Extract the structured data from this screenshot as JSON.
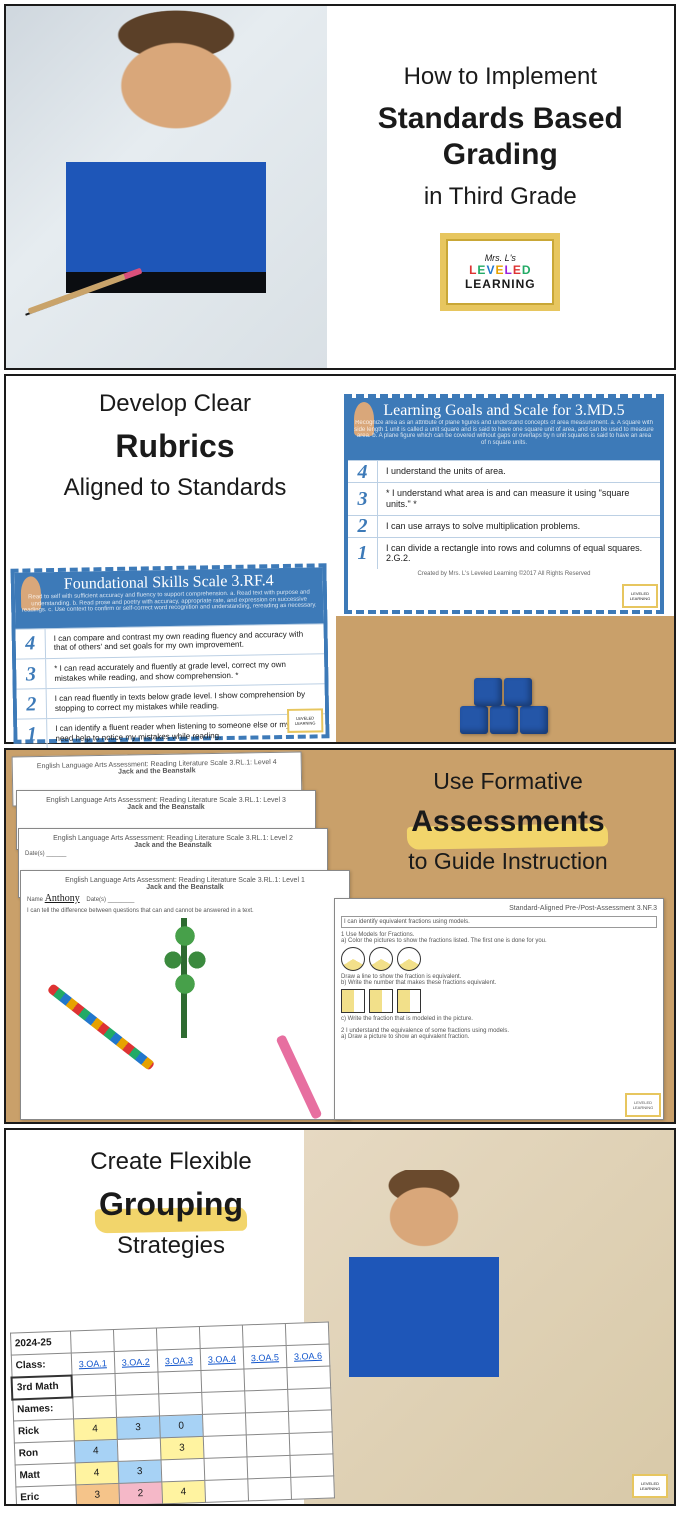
{
  "logo": {
    "line1": "Mrs. L's",
    "line2": "LEVELED",
    "line3": "LEARNING"
  },
  "panel1": {
    "line1": "How to Implement",
    "line2a": "Standards Based",
    "line2b": "Grading",
    "line3": "in Third Grade"
  },
  "panel2": {
    "line1": "Develop Clear",
    "highlight": "Rubrics",
    "line3": "Aligned to Standards",
    "left": {
      "title": "Foundational Skills Scale 3.RF.4",
      "sub": "Read to self with sufficient accuracy and fluency to support comprehension. a. Read text with purpose and understanding. b. Read prose and poetry with accuracy, appropriate rate, and expression on successive readings. c. Use context to confirm or self-correct word recognition and understanding, rereading as necessary.",
      "r4": "I can compare and contrast my own reading fluency and accuracy with that of others' and set goals for my own improvement.",
      "r3": "* I can read accurately and fluently at grade level, correct my own mistakes while reading, and show comprehension. *",
      "r2": "I can read fluently in texts below grade level. I show comprehension by stopping to correct my mistakes while reading.",
      "r1": "I can identify a fluent reader when listening to someone else or myself. I need help to notice my mistakes while reading."
    },
    "right": {
      "title": "Learning Goals and Scale for 3.MD.5",
      "sub": "Recognize area as an attribute of plane figures and understand concepts of area measurement. a. A square with side length 1 unit is called a unit square and is said to have one square unit of area, and can be used to measure area. b. A plane figure which can be covered without gaps or overlaps by n unit squares is said to have an area of n square units.",
      "r4": "I understand the units of area.",
      "r3": "* I understand what area is and can measure it using \"square units.\" *",
      "r2": "I can use arrays to solve multiplication problems.",
      "r1": "I can divide a rectangle into rows and columns of equal squares.   2.G.2.",
      "credit": "Created by Mrs. L's Leveled Learning ©2017 All Rights Reserved"
    }
  },
  "panel3": {
    "line1": "Use Formative",
    "highlight": "Assessments",
    "line3": "to Guide Instruction",
    "sheetA": "English Language Arts Assessment: Reading Literature Scale 3.RL.1: Level 4",
    "storyA": "Jack and the Beanstalk",
    "sheetB": "English Language Arts Assessment: Reading Literature Scale 3.RL.1: Level 3",
    "sheetC": "English Language Arts Assessment: Reading Literature Scale 3.RL.1: Level 2",
    "sheetD": "English Language Arts Assessment: Reading Literature Scale 3.RL.1: Level 1",
    "storyD": "Jack and the Beanstalk",
    "nameLbl": "Name",
    "nameVal": "Anthony",
    "dateLbl": "Date(s)",
    "goalD": "I can tell the difference between questions that can and cannot be answered in a text.",
    "wsTitle": "Standard-Aligned Pre-/Post-Assessment   3.NF.3",
    "wsGoal": "I can identify equivalent fractions using models.",
    "ws1": "1   Use Models for Fractions.\n   a) Color the pictures to show the fractions listed. The first one is done for you.",
    "ws1b": "Draw a line to show the fraction is equivalent.",
    "ws1c": "b) Write the number that makes these fractions equivalent.",
    "ws1d": "c) Write the fraction that is modeled in the picture.",
    "ws2": "2   I understand the equivalence of some fractions using models.\n   a) Draw a picture to show an equivalent fraction."
  },
  "panel4": {
    "line1": "Create Flexible",
    "highlight": "Grouping",
    "line3": "Strategies",
    "year": "2024-25",
    "classLbl": "Class:",
    "className": "3rd Math",
    "namesLbl": "Names:",
    "headers": [
      "3.OA.1",
      "3.OA.2",
      "3.OA.3",
      "3.OA.4",
      "3.OA.5",
      "3.OA.6"
    ],
    "students": [
      "Rick",
      "Ron",
      "Matt",
      "Eric"
    ],
    "grid": [
      [
        "4",
        "3",
        "0",
        "",
        "",
        ""
      ],
      [
        "4",
        "",
        "3",
        "",
        "",
        ""
      ],
      [
        "4",
        "3",
        "",
        "",
        "",
        ""
      ],
      [
        "3",
        "2",
        "4",
        "",
        "",
        ""
      ]
    ],
    "colors": [
      [
        "c-y",
        "c-b",
        "c-b",
        "",
        "",
        ""
      ],
      [
        "c-b",
        "",
        "c-y",
        "",
        "",
        ""
      ],
      [
        "c-y",
        "c-b",
        "",
        "",
        "",
        ""
      ],
      [
        "c-o",
        "c-p",
        "c-y",
        "",
        "",
        ""
      ]
    ]
  }
}
